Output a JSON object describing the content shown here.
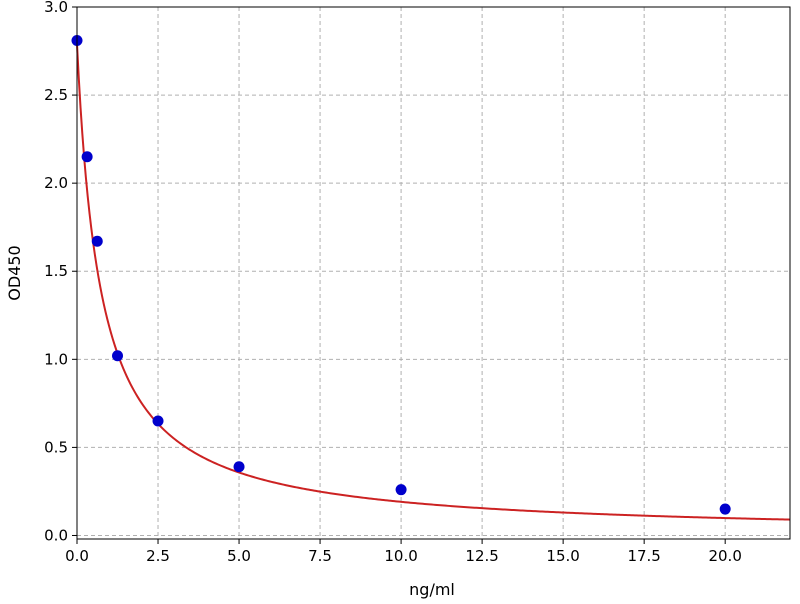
{
  "chart_data": {
    "type": "scatter",
    "title": "",
    "xlabel": "ng/ml",
    "ylabel": "OD450",
    "xlim": [
      0,
      22
    ],
    "ylim": [
      -0.02,
      3.0
    ],
    "x_ticks": [
      0,
      2.5,
      5,
      7.5,
      10,
      12.5,
      15,
      17.5,
      20
    ],
    "x_tick_labels": [
      "0.0",
      "2.5",
      "5.0",
      "7.5",
      "10.0",
      "12.5",
      "15.0",
      "17.5",
      "20.0"
    ],
    "y_ticks": [
      0,
      0.5,
      1.0,
      1.5,
      2.0,
      2.5,
      3.0
    ],
    "y_tick_labels": [
      "0.0",
      "0.5",
      "1.0",
      "1.5",
      "2.0",
      "2.5",
      "3.0"
    ],
    "grid": true,
    "points": {
      "x": [
        0,
        0.3125,
        0.625,
        1.25,
        2.5,
        5,
        10,
        20
      ],
      "y": [
        2.81,
        2.15,
        1.67,
        1.02,
        0.65,
        0.39,
        0.26,
        0.15
      ],
      "color": "#0000cc"
    },
    "fit_curve": {
      "model": "4PL",
      "A": 2.79,
      "B": 1.0,
      "C": 0.735,
      "D": 0.0,
      "color": "#cc2222"
    }
  }
}
